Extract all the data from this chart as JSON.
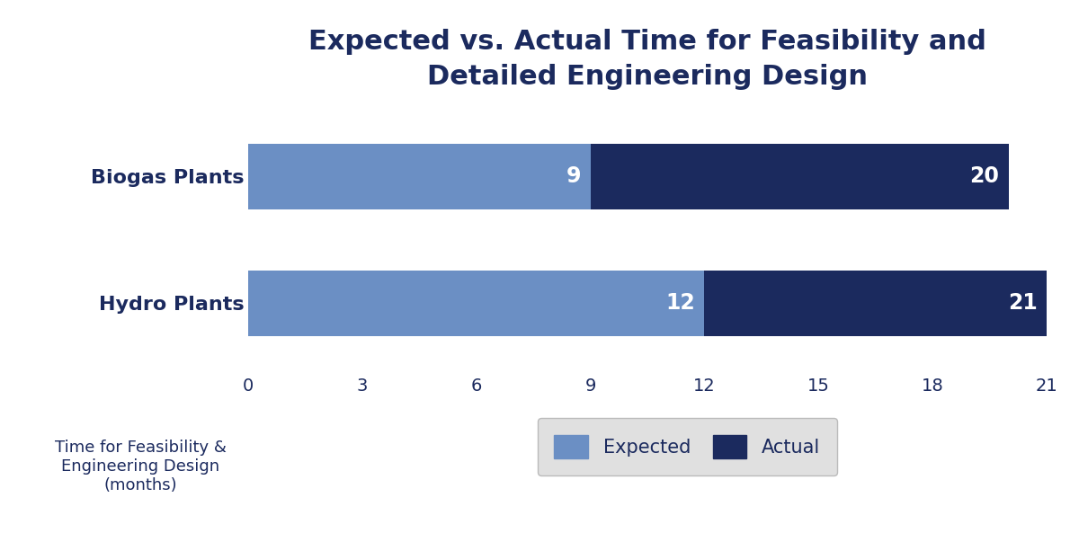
{
  "title": "Expected vs. Actual Time for Feasibility and\nDetailed Engineering Design",
  "categories": [
    "Biogas Plants",
    "Hydro Plants"
  ],
  "expected_values": [
    9,
    12
  ],
  "actual_values": [
    20,
    21
  ],
  "expected_color": "#6B8FC4",
  "actual_color": "#1B2A5E",
  "bar_height": 0.52,
  "xlim": [
    0,
    21
  ],
  "xticks": [
    0,
    3,
    6,
    9,
    12,
    15,
    18,
    21
  ],
  "xlabel_line1": "Time for Feasibility &",
  "xlabel_line2": "Engineering Design",
  "xlabel_line3": "(months)",
  "title_color": "#1B2A5E",
  "label_color": "#1B2A5E",
  "tick_color": "#1B2A5E",
  "legend_label_expected": "Expected",
  "legend_label_actual": "Actual",
  "background_color": "#FFFFFF",
  "title_fontsize": 22,
  "xlabel_fontsize": 13,
  "tick_fontsize": 14,
  "bar_label_fontsize": 17,
  "legend_fontsize": 15,
  "category_fontsize": 16
}
